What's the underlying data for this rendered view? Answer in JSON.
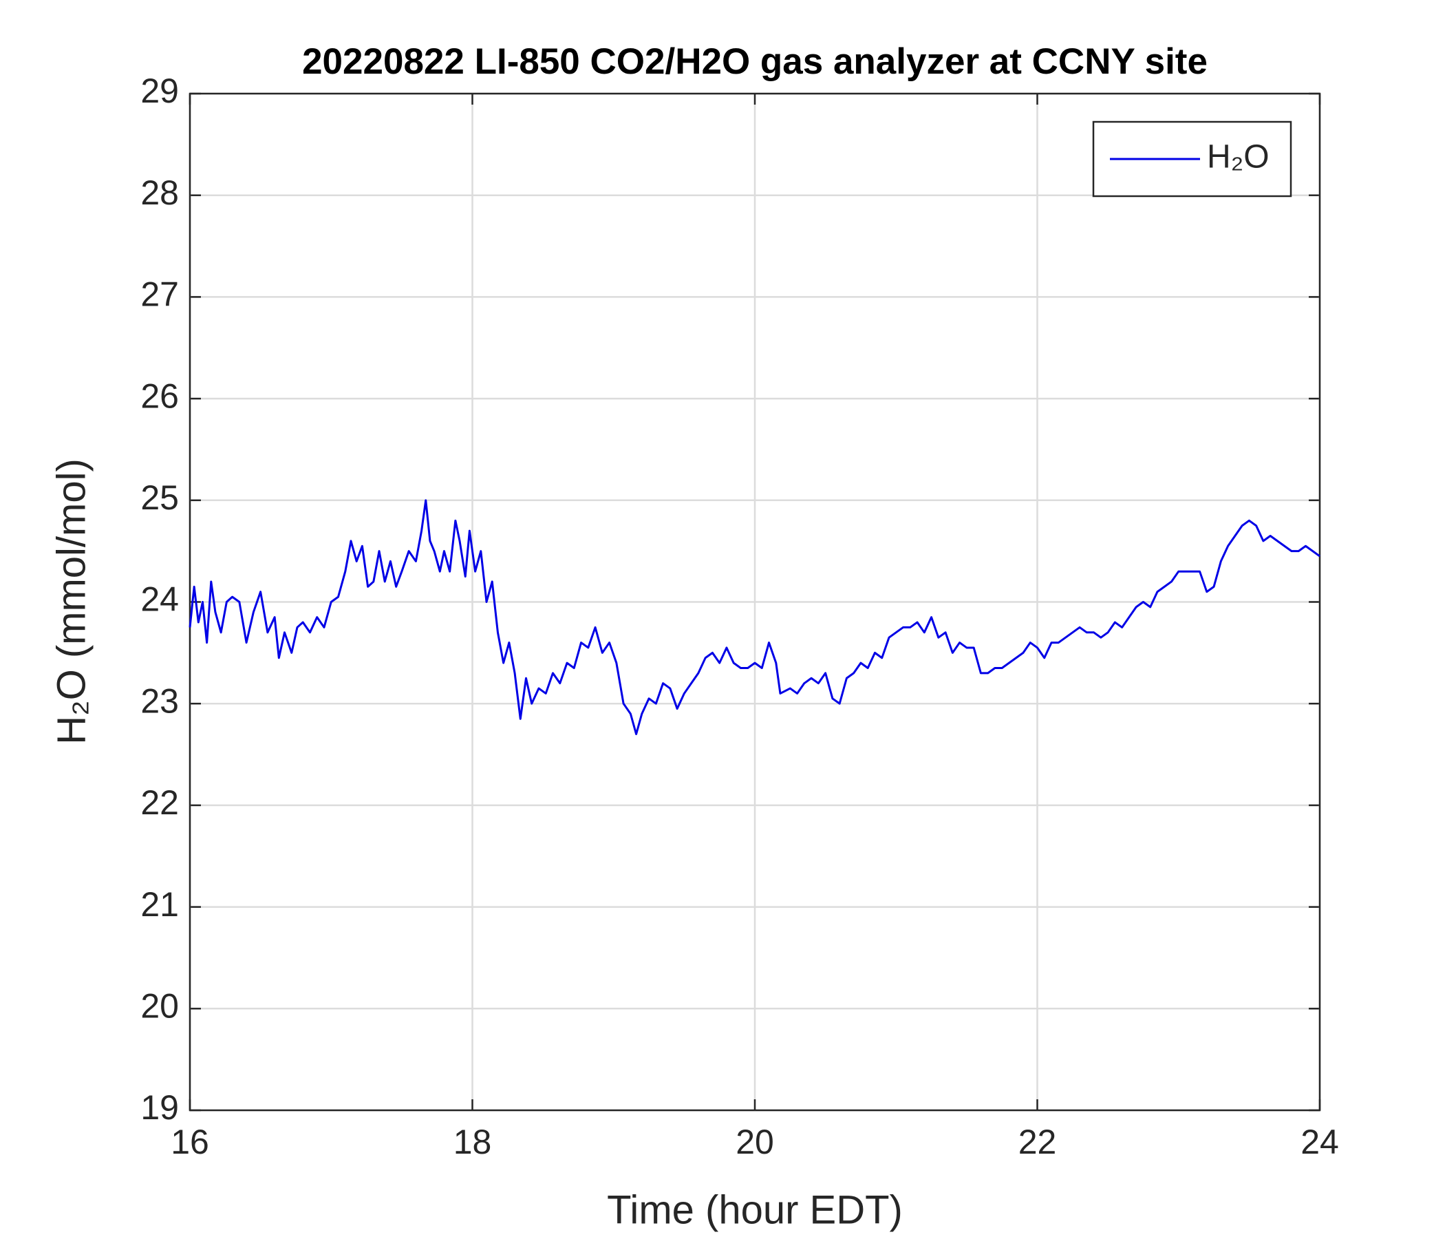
{
  "chart_data": {
    "type": "line",
    "title": "20220822 LI-850 CO2/H2O gas analyzer at CCNY site",
    "x_label": "Time (hour EDT)",
    "y_label": "H₂O (mmol/mol)",
    "xlim": [
      16,
      24
    ],
    "xticks": [
      16,
      18,
      20,
      22,
      24
    ],
    "ylim": [
      19,
      29
    ],
    "yticks": [
      19,
      20,
      21,
      22,
      23,
      24,
      25,
      26,
      27,
      28,
      29
    ],
    "grid": true,
    "legend_position": "upper-right",
    "x": [
      16.0,
      16.03,
      16.06,
      16.09,
      16.12,
      16.15,
      16.18,
      16.22,
      16.26,
      16.3,
      16.35,
      16.4,
      16.45,
      16.5,
      16.55,
      16.6,
      16.63,
      16.67,
      16.72,
      16.76,
      16.8,
      16.85,
      16.9,
      16.95,
      17.0,
      17.05,
      17.1,
      17.14,
      17.18,
      17.22,
      17.26,
      17.3,
      17.34,
      17.38,
      17.42,
      17.46,
      17.5,
      17.55,
      17.6,
      17.64,
      17.67,
      17.7,
      17.73,
      17.77,
      17.8,
      17.84,
      17.88,
      17.91,
      17.95,
      17.98,
      18.02,
      18.06,
      18.1,
      18.14,
      18.18,
      18.22,
      18.26,
      18.3,
      18.34,
      18.38,
      18.42,
      18.47,
      18.52,
      18.57,
      18.62,
      18.67,
      18.72,
      18.77,
      18.82,
      18.87,
      18.92,
      18.97,
      19.02,
      19.07,
      19.12,
      19.16,
      19.2,
      19.25,
      19.3,
      19.35,
      19.4,
      19.45,
      19.5,
      19.55,
      19.6,
      19.65,
      19.7,
      19.75,
      19.8,
      19.85,
      19.9,
      19.95,
      20.0,
      20.05,
      20.1,
      20.15,
      20.18,
      20.25,
      20.3,
      20.35,
      20.4,
      20.45,
      20.5,
      20.55,
      20.6,
      20.65,
      20.7,
      20.75,
      20.8,
      20.85,
      20.9,
      20.95,
      21.0,
      21.05,
      21.1,
      21.15,
      21.2,
      21.25,
      21.3,
      21.35,
      21.4,
      21.45,
      21.5,
      21.55,
      21.6,
      21.65,
      21.7,
      21.75,
      21.8,
      21.85,
      21.9,
      21.95,
      22.0,
      22.05,
      22.1,
      22.15,
      22.2,
      22.25,
      22.3,
      22.35,
      22.4,
      22.45,
      22.5,
      22.55,
      22.6,
      22.65,
      22.7,
      22.75,
      22.8,
      22.85,
      22.9,
      22.95,
      23.0,
      23.05,
      23.1,
      23.15,
      23.2,
      23.25,
      23.3,
      23.35,
      23.4,
      23.45,
      23.5,
      23.55,
      23.6,
      23.65,
      23.7,
      23.75,
      23.8,
      23.85,
      23.9,
      23.95,
      24.0
    ],
    "series": [
      {
        "name": "H₂O",
        "color": "#0000e6",
        "values": [
          23.75,
          24.15,
          23.8,
          24.0,
          23.6,
          24.2,
          23.9,
          23.7,
          24.0,
          24.05,
          24.0,
          23.6,
          23.9,
          24.1,
          23.7,
          23.85,
          23.45,
          23.7,
          23.5,
          23.75,
          23.8,
          23.7,
          23.85,
          23.75,
          24.0,
          24.05,
          24.3,
          24.6,
          24.4,
          24.55,
          24.15,
          24.2,
          24.5,
          24.2,
          24.4,
          24.15,
          24.3,
          24.5,
          24.4,
          24.7,
          25.0,
          24.6,
          24.5,
          24.3,
          24.5,
          24.3,
          24.8,
          24.6,
          24.25,
          24.7,
          24.3,
          24.5,
          24.0,
          24.2,
          23.7,
          23.4,
          23.6,
          23.3,
          22.85,
          23.25,
          23.0,
          23.15,
          23.1,
          23.3,
          23.2,
          23.4,
          23.35,
          23.6,
          23.55,
          23.75,
          23.5,
          23.6,
          23.4,
          23.0,
          22.9,
          22.7,
          22.9,
          23.05,
          23.0,
          23.2,
          23.15,
          22.95,
          23.1,
          23.2,
          23.3,
          23.45,
          23.5,
          23.4,
          23.55,
          23.4,
          23.35,
          23.35,
          23.4,
          23.35,
          23.6,
          23.4,
          23.1,
          23.15,
          23.1,
          23.2,
          23.25,
          23.2,
          23.3,
          23.05,
          23.0,
          23.25,
          23.3,
          23.4,
          23.35,
          23.5,
          23.45,
          23.65,
          23.7,
          23.75,
          23.75,
          23.8,
          23.7,
          23.85,
          23.65,
          23.7,
          23.5,
          23.6,
          23.55,
          23.55,
          23.3,
          23.3,
          23.35,
          23.35,
          23.4,
          23.45,
          23.5,
          23.6,
          23.55,
          23.45,
          23.6,
          23.6,
          23.65,
          23.7,
          23.75,
          23.7,
          23.7,
          23.65,
          23.7,
          23.8,
          23.75,
          23.85,
          23.95,
          24.0,
          23.95,
          24.1,
          24.15,
          24.2,
          24.3,
          24.3,
          24.3,
          24.3,
          24.1,
          24.15,
          24.4,
          24.55,
          24.65,
          24.75,
          24.8,
          24.75,
          24.6,
          24.65,
          24.6,
          24.55,
          24.5,
          24.5,
          24.55,
          24.5,
          24.45
        ]
      }
    ]
  }
}
